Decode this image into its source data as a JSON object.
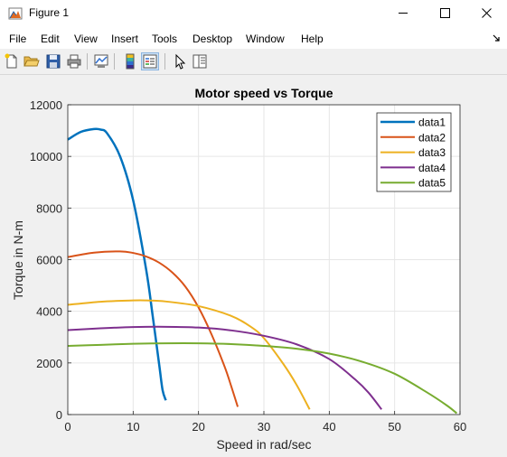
{
  "window": {
    "title": "Figure 1"
  },
  "menu": {
    "items": [
      "File",
      "Edit",
      "View",
      "Insert",
      "Tools",
      "Desktop",
      "Window",
      "Help"
    ]
  },
  "toolbar": {
    "buttons": [
      "new-figure-icon",
      "open-folder-icon",
      "save-icon",
      "print-icon",
      "link-plot-icon",
      "colorbar-icon",
      "legend-icon",
      "edit-plot-arrow-icon",
      "property-inspector-icon"
    ]
  },
  "colors": {
    "data1": "#0072bd",
    "data2": "#d95319",
    "data3": "#edb120",
    "data4": "#7e2f8e",
    "data5": "#77ac30"
  },
  "chart_data": {
    "type": "line",
    "title": "Motor speed vs Torque",
    "xlabel": "Speed in rad/sec",
    "ylabel": "Torque in N-m",
    "xlim": [
      0,
      60
    ],
    "ylim": [
      0,
      12000
    ],
    "xticks": [
      0,
      10,
      20,
      30,
      40,
      50,
      60
    ],
    "yticks": [
      0,
      2000,
      4000,
      6000,
      8000,
      10000,
      12000
    ],
    "grid": true,
    "legend_location": "top-right",
    "series": [
      {
        "name": "data1",
        "color": "#0072bd",
        "linewidth": 2.5,
        "x": [
          0,
          2,
          4,
          5,
          6,
          8,
          10,
          12,
          13,
          14,
          14.5,
          15
        ],
        "y": [
          10650,
          10950,
          11060,
          11040,
          10900,
          10000,
          8300,
          5600,
          3800,
          1900,
          950,
          550
        ]
      },
      {
        "name": "data2",
        "color": "#d95319",
        "linewidth": 2,
        "x": [
          0,
          4,
          8,
          10,
          12,
          14,
          16,
          18,
          20,
          22,
          24,
          25,
          26
        ],
        "y": [
          6100,
          6270,
          6320,
          6260,
          6120,
          5880,
          5500,
          4950,
          4150,
          3100,
          1850,
          1100,
          300
        ]
      },
      {
        "name": "data3",
        "color": "#edb120",
        "linewidth": 2,
        "x": [
          0,
          5,
          10,
          12,
          15,
          20,
          25,
          28,
          30,
          33,
          35,
          37
        ],
        "y": [
          4250,
          4370,
          4420,
          4420,
          4380,
          4200,
          3820,
          3400,
          2960,
          1950,
          1150,
          200
        ]
      },
      {
        "name": "data4",
        "color": "#7e2f8e",
        "linewidth": 2,
        "x": [
          0,
          5,
          10,
          15,
          20,
          25,
          30,
          35,
          40,
          44,
          46,
          48
        ],
        "y": [
          3270,
          3340,
          3390,
          3400,
          3370,
          3260,
          3050,
          2720,
          2150,
          1350,
          850,
          200
        ]
      },
      {
        "name": "data5",
        "color": "#77ac30",
        "linewidth": 2,
        "x": [
          0,
          5,
          10,
          15,
          20,
          25,
          30,
          35,
          40,
          45,
          50,
          55,
          58,
          59.5
        ],
        "y": [
          2660,
          2700,
          2740,
          2760,
          2760,
          2730,
          2660,
          2550,
          2360,
          2050,
          1580,
          850,
          350,
          50
        ]
      }
    ]
  }
}
